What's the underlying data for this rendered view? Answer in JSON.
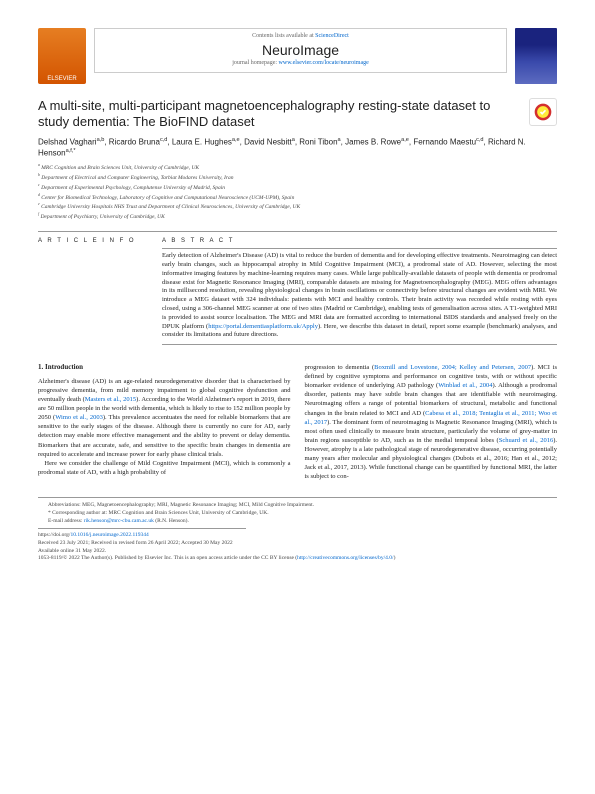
{
  "header": {
    "publisher": "ELSEVIER",
    "contents_prefix": "Contents lists available at ",
    "contents_link": "ScienceDirect",
    "journal_name": "NeuroImage",
    "homepage_prefix": "journal homepage: ",
    "homepage_link": "www.elsevier.com/locate/neuroimage"
  },
  "article": {
    "title": "A multi-site, multi-participant magnetoencephalography resting-state dataset to study dementia: The BioFIND dataset",
    "authors_html": "Delshad Vaghari<sup>a,b</sup>, Ricardo Bruna<sup>c,d</sup>, Laura E. Hughes<sup>a,e</sup>, David Nesbitt<sup>a</sup>, Roni Tibon<sup>a</sup>, James B. Rowe<sup>a,e</sup>, Fernando Maestu<sup>c,d</sup>, Richard N. Henson<sup>a,f,*</sup>",
    "affiliations": [
      "a MRC Cognition and Brain Sciences Unit, University of Cambridge, UK",
      "b Department of Electrical and Computer Engineering, Tarbiat Modares University, Iran",
      "c Department of Experimental Psychology, Complutense University of Madrid, Spain",
      "d Center for Biomedical Technology, Laboratory of Cognitive and Computational Neuroscience (UCM-UPM), Spain",
      "e Cambridge University Hospitals NHS Trust and Department of Clinical Neurosciences, University of Cambridge, UK",
      "f Department of Psychiatry, University of Cambridge, UK"
    ],
    "info_label": "A R T I C L E   I N F O",
    "abstract_label": "A B S T R A C T",
    "abstract": "Early detection of Alzheimer's Disease (AD) is vital to reduce the burden of dementia and for developing effective treatments. Neuroimaging can detect early brain changes, such as hippocampal atrophy in Mild Cognitive Impairment (MCI), a prodromal state of AD. However, selecting the most informative imaging features by machine-learning requires many cases. While large publically-available datasets of people with dementia or prodromal disease exist for Magnetic Resonance Imaging (MRI), comparable datasets are missing for Magnetoencephalography (MEG). MEG offers advantages in its millisecond resolution, revealing physiological changes in brain oscillations or connectivity before structural changes are evident with MRI. We introduce a MEG dataset with 324 individuals: patients with MCI and healthy controls. Their brain activity was recorded while resting with eyes closed, using a 306-channel MEG scanner at one of two sites (Madrid or Cambridge), enabling tests of generalisation across sites. A T1-weighted MRI is provided to assist source localisation. The MEG and MRI data are formatted according to international BIDS standards and analysed freely on the DPUK platform (",
    "abstract_link": "https://portal.dementiasplatform.uk/Apply",
    "abstract_suffix": "). Here, we describe this dataset in detail, report some example (benchmark) analyses, and consider its limitations and future directions."
  },
  "intro": {
    "heading": "1. Introduction",
    "col1": "Alzheimer's disease (AD) is an age-related neurodegenerative disorder that is characterised by progressive dementia, from mild memory impairment to global cognitive dysfunction and eventually death (Masters et al., 2015). According to the World Alzheimer's report in 2019, there are 50 million people in the world with dementia, which is likely to rise to 152 million people by 2050 (Wimo et al., 2003). This prevalence accentuates the need for reliable biomarkers that are sensitive to the early stages of the disease. Although there is currently no cure for AD, early detection may enable more effective management and the ability to prevent or delay dementia. Biomarkers that are accurate, safe, and sensitive to the specific brain changes in dementia are required to accelerate and increase power for early phase clinical trials.\n\nHere we consider the challenge of Mild Cognitive Impairment (MCI), which is commonly a prodromal state of AD, with a high probability of",
    "col2": "progression to dementia (Boxmill and Lovestone, 2004; Kelley and Petersen, 2007). MCI is defined by cognitive symptoms and performance on cognitive tests, with or without specific biomarker evidence of underlying AD pathology (Winblad et al., 2004). Although a prodromal disorder, patients may have subtle brain changes that are identifiable with neuroimaging. Neuroimaging offers a range of potential biomarkers of structural, metabolic and functional changes in the brain related to MCI and AD (Cabesa et al., 2018; Tentaglia et al., 2011; Woo et al., 2017). The dominant form of neuroimaging is Magnetic Resonance Imaging (MRI), which is most often used clinically to measure brain structure, particularly the volume of grey-matter in brain regions susceptible to AD, such as in the medial temporal lobes (Schuard et al., 2016). However, atrophy is a late pathological stage of neurodegenerative disease, occurring potentially many years after molecular and physiological changes (Dubois et al., 2016; Han et al., 2012; Jack et al., 2017, 2013). While functional change can be quantified by functional MRI, the latter is subject to con-"
  },
  "footnotes": {
    "abbrev": "Abbreviations: MEG, Magnetoencephalography; MRI, Magnetic Resonance Imaging; MCI, Mild Cognitive Impairment.",
    "corr": "* Corresponding author at: MRC Cognition and Brain Sciences Unit, University of Cambridge, UK.",
    "email_prefix": "E-mail address: ",
    "email": "rik.henson@mrc-cbu.cam.ac.uk",
    "email_suffix": " (R.N. Henson).",
    "doi_prefix": "https://doi.org/",
    "doi": "10.1016/j.neuroimage.2022.119344",
    "received": "Received 23 July 2021; Received in revised form 26 April 2022; Accepted 30 May 2022",
    "available": "Available online 31 May 2022.",
    "copyright": "1053-8119/© 2022 The Author(s). Published by Elsevier Inc. This is an open access article under the CC BY license (",
    "license_link": "http://creativecommons.org/licenses/by/4.0/",
    "copyright_suffix": ")"
  }
}
